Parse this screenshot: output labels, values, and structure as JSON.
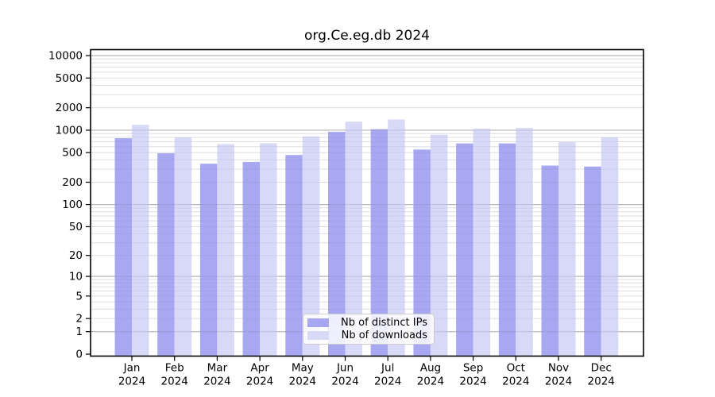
{
  "figure": {
    "background": "#ffffff",
    "spine_color": "#000000"
  },
  "chart_data": {
    "type": "bar",
    "title": "org.Ce.eg.db 2024",
    "categories": [
      "Jan",
      "Feb",
      "Mar",
      "Apr",
      "May",
      "Jun",
      "Jul",
      "Aug",
      "Sep",
      "Oct",
      "Nov",
      "Dec"
    ],
    "year": "2024",
    "series": [
      {
        "name": "Nb of distinct IPs",
        "color": "#a8a8f2",
        "values": [
          780,
          490,
          355,
          375,
          465,
          950,
          1030,
          550,
          665,
          665,
          335,
          325
        ]
      },
      {
        "name": "Nb of downloads",
        "color": "#d8d8f7",
        "values": [
          1180,
          800,
          650,
          665,
          825,
          1300,
          1390,
          870,
          1050,
          1070,
          690,
          800
        ]
      }
    ],
    "y_axis": {
      "scale": "log1p",
      "ticks": [
        0,
        1,
        2,
        5,
        10,
        20,
        50,
        100,
        200,
        500,
        1000,
        2000,
        5000,
        10000
      ],
      "top_value": 12000
    },
    "grid": {
      "major_values": [
        1,
        10,
        100,
        1000,
        10000
      ],
      "major_color": "#c8c8c8",
      "minor_color": "#ececec"
    },
    "legend": {
      "entries": [
        "Nb of distinct IPs",
        "Nb of downloads"
      ],
      "position": "bottom-center"
    }
  }
}
